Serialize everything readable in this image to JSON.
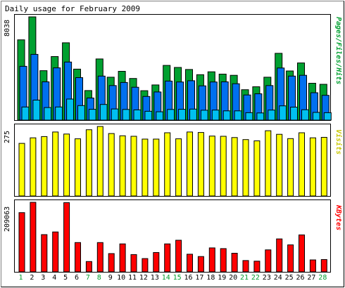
{
  "title": "Daily usage for February 2009",
  "colors": {
    "hits": "#00a030",
    "files": "#0070f0",
    "pages": "#00c0f0",
    "visits": "#ffff00",
    "kbytes": "#ff0000",
    "weekend_label": "#00a030",
    "weekday_label": "#000000"
  },
  "chart_data": [
    {
      "type": "bar",
      "panel": "hits-files-pages",
      "legend_label": "Pages/Files/Hits",
      "max_label": "8038",
      "ylim": [
        0,
        8038
      ],
      "categories": [
        "1",
        "2",
        "3",
        "4",
        "5",
        "6",
        "7",
        "8",
        "9",
        "10",
        "11",
        "12",
        "13",
        "14",
        "15",
        "16",
        "17",
        "18",
        "19",
        "20",
        "21",
        "22",
        "23",
        "24",
        "25",
        "26",
        "27",
        "28"
      ],
      "weekend_days": [
        "1",
        "7",
        "8",
        "14",
        "15",
        "21",
        "22",
        "28"
      ],
      "series": [
        {
          "name": "Hits",
          "values": [
            6250,
            8038,
            3850,
            4950,
            6020,
            3970,
            2300,
            4760,
            3340,
            3800,
            3240,
            2290,
            2740,
            4260,
            4100,
            3940,
            3540,
            3760,
            3580,
            3490,
            2370,
            2600,
            3340,
            5200,
            3830,
            4450,
            2870,
            2790
          ]
        },
        {
          "name": "Files",
          "values": [
            4190,
            5120,
            2980,
            4070,
            4520,
            3310,
            1720,
            3430,
            2690,
            2930,
            2560,
            1840,
            2190,
            3040,
            2970,
            3070,
            2670,
            2970,
            2980,
            2830,
            1960,
            2050,
            2690,
            4060,
            3430,
            3490,
            2130,
            1930
          ]
        },
        {
          "name": "Pages",
          "values": [
            1020,
            1560,
            980,
            1020,
            1640,
            1130,
            840,
            1220,
            870,
            830,
            800,
            690,
            650,
            830,
            840,
            860,
            770,
            780,
            720,
            720,
            580,
            560,
            780,
            1110,
            1010,
            810,
            600,
            580
          ]
        }
      ]
    },
    {
      "type": "bar",
      "panel": "visits",
      "legend_label": "Visits",
      "max_label": "275",
      "ylim": [
        0,
        275
      ],
      "categories": [
        "1",
        "2",
        "3",
        "4",
        "5",
        "6",
        "7",
        "8",
        "9",
        "10",
        "11",
        "12",
        "13",
        "14",
        "15",
        "16",
        "17",
        "18",
        "19",
        "20",
        "21",
        "22",
        "23",
        "24",
        "25",
        "26",
        "27",
        "28"
      ],
      "series": [
        {
          "name": "Visits",
          "values": [
            208,
            230,
            235,
            253,
            245,
            226,
            262,
            275,
            247,
            238,
            236,
            225,
            225,
            250,
            226,
            253,
            251,
            237,
            236,
            231,
            223,
            218,
            258,
            244,
            227,
            250,
            230,
            232
          ]
        }
      ]
    },
    {
      "type": "bar",
      "panel": "kbytes",
      "legend_label": "KBytes",
      "max_label": "209063",
      "ylim": [
        0,
        209063
      ],
      "categories": [
        "1",
        "2",
        "3",
        "4",
        "5",
        "6",
        "7",
        "8",
        "9",
        "10",
        "11",
        "12",
        "13",
        "14",
        "15",
        "16",
        "17",
        "18",
        "19",
        "20",
        "21",
        "22",
        "23",
        "24",
        "25",
        "26",
        "27",
        "28"
      ],
      "series": [
        {
          "name": "KBytes",
          "values": [
            178000,
            209063,
            112000,
            120000,
            208000,
            88000,
            31000,
            88000,
            55000,
            84000,
            52000,
            40000,
            58000,
            84000,
            95000,
            53000,
            46000,
            72000,
            70000,
            56000,
            34000,
            32000,
            66000,
            99000,
            81000,
            111000,
            36000,
            37000
          ]
        }
      ]
    }
  ]
}
